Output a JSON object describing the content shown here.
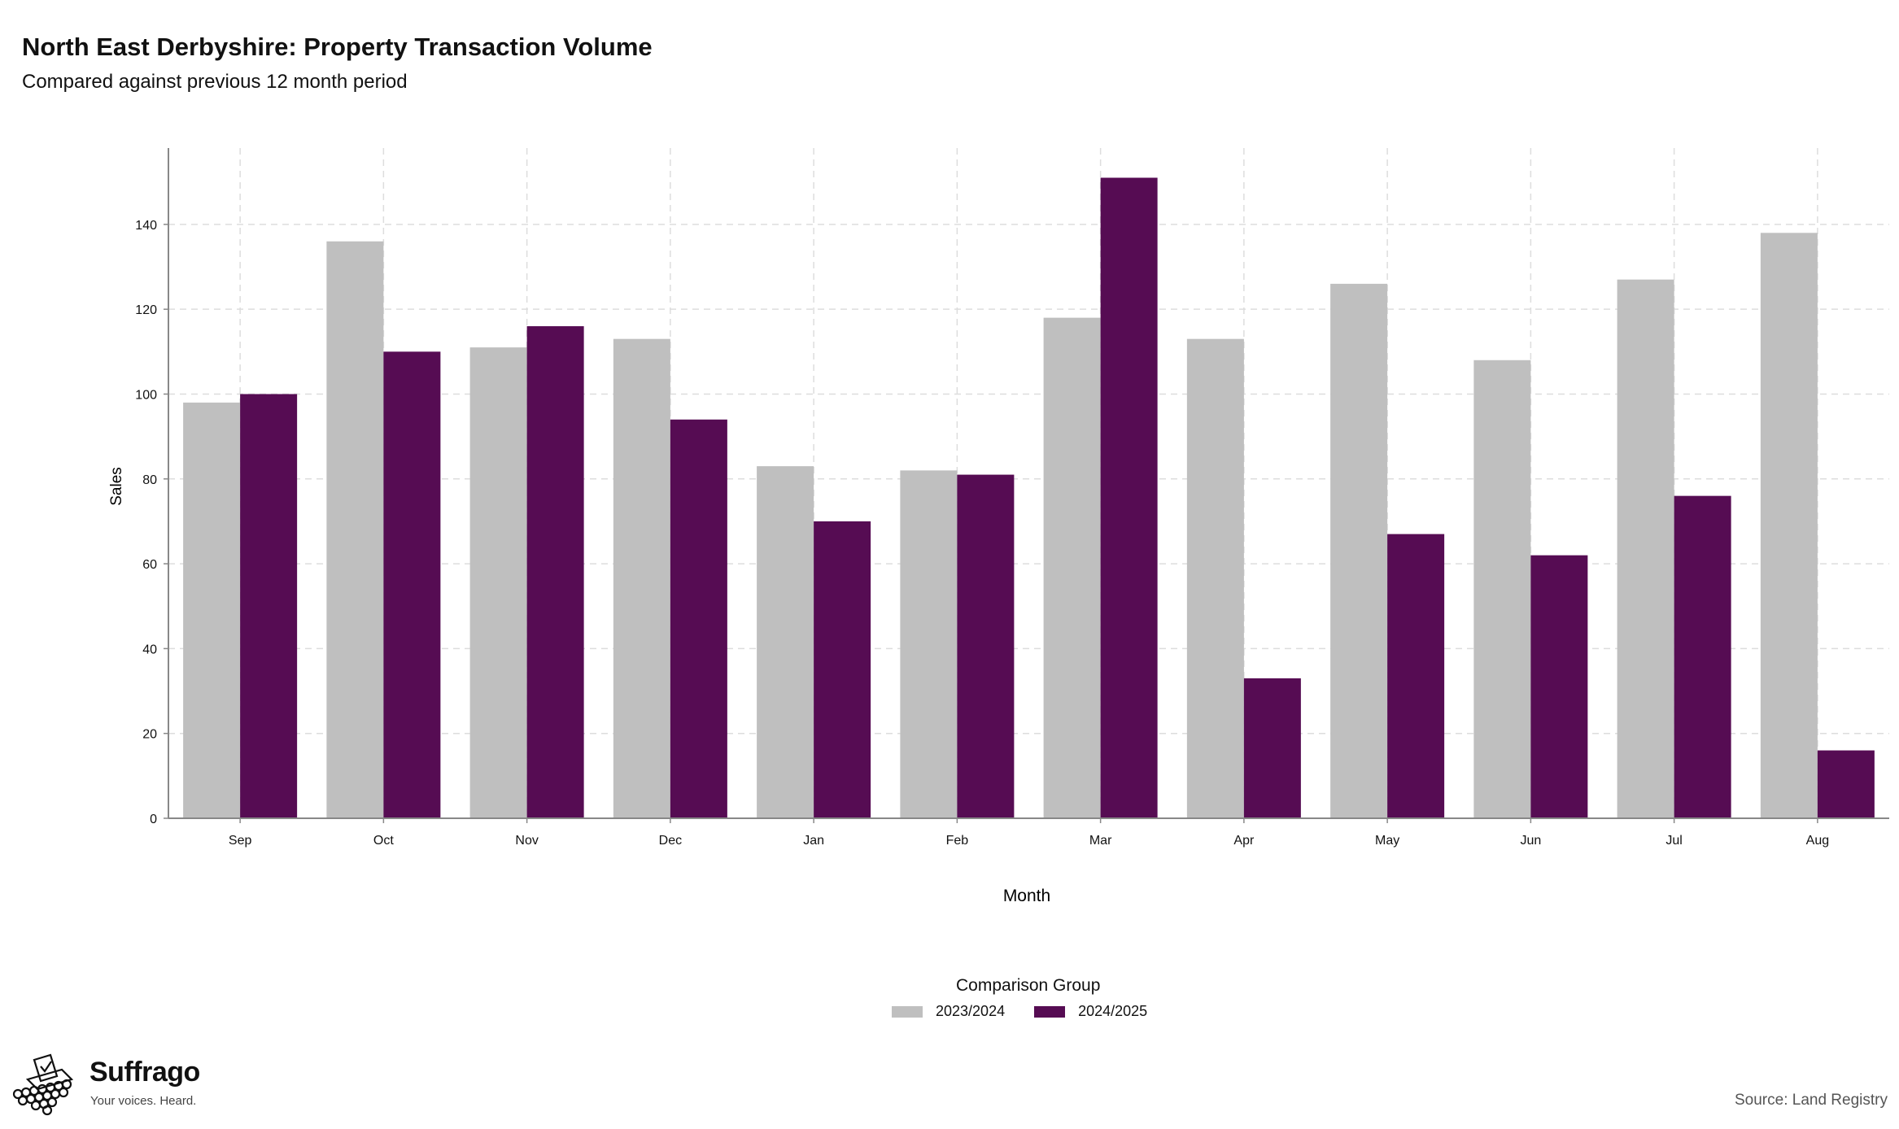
{
  "title": "North East Derbyshire: Property Transaction Volume",
  "subtitle": "Compared against previous 12 month period",
  "colors": {
    "series_a": "#bfbfbf",
    "series_b": "#560c53",
    "grid": "#dddddd",
    "axis": "#888888"
  },
  "chart_data": {
    "type": "bar",
    "categories": [
      "Sep",
      "Oct",
      "Nov",
      "Dec",
      "Jan",
      "Feb",
      "Mar",
      "Apr",
      "May",
      "Jun",
      "Jul",
      "Aug"
    ],
    "series": [
      {
        "name": "2023/2024",
        "values": [
          98,
          136,
          111,
          113,
          83,
          82,
          118,
          113,
          126,
          108,
          127,
          138
        ]
      },
      {
        "name": "2024/2025",
        "values": [
          100,
          110,
          116,
          94,
          70,
          81,
          151,
          33,
          67,
          62,
          76,
          16
        ]
      }
    ],
    "xlabel": "Month",
    "ylabel": "Sales",
    "ylim": [
      0,
      158
    ],
    "yticks": [
      0,
      20,
      40,
      60,
      80,
      100,
      120,
      140
    ],
    "grid": true,
    "legend_position": "bottom"
  },
  "legend": {
    "title": "Comparison Group",
    "items": [
      "2023/2024",
      "2024/2025"
    ]
  },
  "brand": {
    "name": "Suffrago",
    "tagline": "Your voices. Heard.",
    "icon": "ballot-box-icon"
  },
  "source": "Source: Land Registry"
}
